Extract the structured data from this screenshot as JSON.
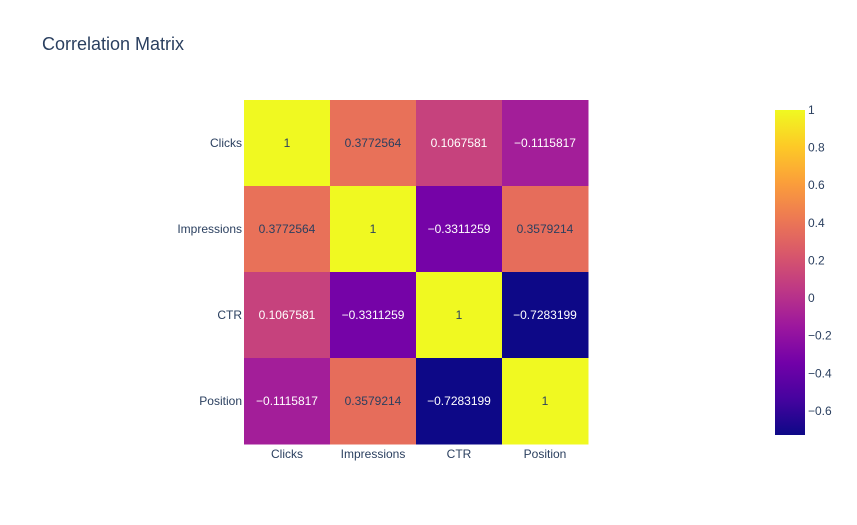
{
  "chart_data": {
    "type": "heatmap",
    "title": "Correlation Matrix",
    "x": [
      "Clicks",
      "Impressions",
      "CTR",
      "Position"
    ],
    "y": [
      "Clicks",
      "Impressions",
      "CTR",
      "Position"
    ],
    "z": [
      [
        1,
        0.3772564,
        0.1067581,
        -0.1115817
      ],
      [
        0.3772564,
        1,
        -0.3311259,
        0.3579214
      ],
      [
        0.1067581,
        -0.3311259,
        1,
        -0.7283199
      ],
      [
        -0.1115817,
        0.3579214,
        -0.7283199,
        1
      ]
    ],
    "cell_labels": [
      [
        "1",
        "0.3772564",
        "0.1067581",
        "−0.1115817"
      ],
      [
        "0.3772564",
        "1",
        "−0.3311259",
        "0.3579214"
      ],
      [
        "0.1067581",
        "−0.3311259",
        "1",
        "−0.7283199"
      ],
      [
        "−0.1115817",
        "0.3579214",
        "−0.7283199",
        "1"
      ]
    ],
    "zrange": [
      -0.7283199,
      1
    ],
    "colorscale": [
      "#0d0887",
      "#46039f",
      "#7201a8",
      "#9c179e",
      "#bd3786",
      "#d8576b",
      "#ed7953",
      "#fb9f3a",
      "#fdca26",
      "#f0f921"
    ],
    "colorbar": {
      "tick_values": [
        1,
        0.8,
        0.6,
        0.4,
        0.2,
        0,
        -0.2,
        -0.4,
        -0.6
      ],
      "tick_labels": [
        "1",
        "0.8",
        "0.6",
        "0.4",
        "0.2",
        "0",
        "−0.2",
        "−0.4",
        "−0.6"
      ]
    }
  }
}
